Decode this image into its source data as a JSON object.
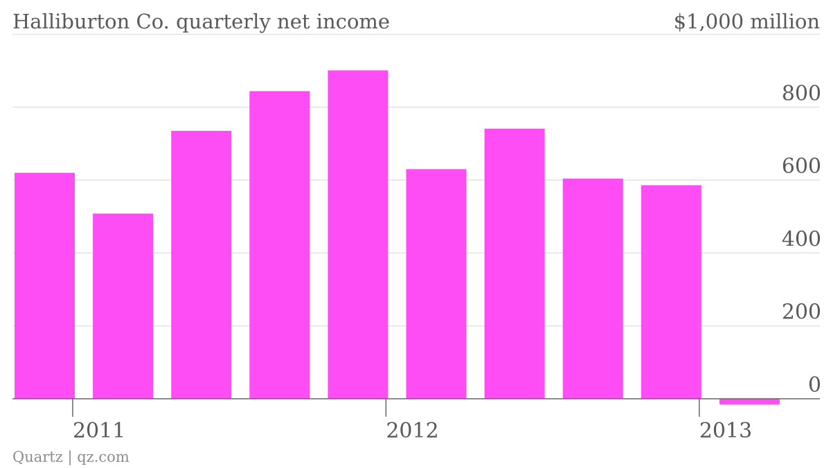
{
  "chart_data": {
    "type": "bar",
    "title": "Halliburton Co. quarterly net income",
    "unit_label": "$1,000 million",
    "xlabel": "",
    "ylabel": "",
    "source": "Quartz | qz.com",
    "categories": [
      "Q1 2011",
      "Q2 2011",
      "Q3 2011",
      "Q4 2011",
      "Q1 2012",
      "Q2 2012",
      "Q3 2012",
      "Q4 2012",
      "Q1 2013",
      "Q2 2013"
    ],
    "values": [
      620,
      508,
      735,
      844,
      901,
      630,
      741,
      604,
      586,
      -16
    ],
    "ylim": [
      -20,
      1000
    ],
    "y_ticks": [
      0,
      200,
      400,
      600,
      800
    ],
    "x_tick_labels": [
      {
        "label": "2011",
        "year": 2011
      },
      {
        "label": "2012",
        "year": 2012
      },
      {
        "label": "2013",
        "year": 2013
      }
    ],
    "grid": true,
    "y_axis_side": "right",
    "colors": {
      "bar": "#ff4df5",
      "grid": "#e2e2e2",
      "axis": "#666666",
      "text": "#595959",
      "source": "#8c8c8c"
    }
  }
}
